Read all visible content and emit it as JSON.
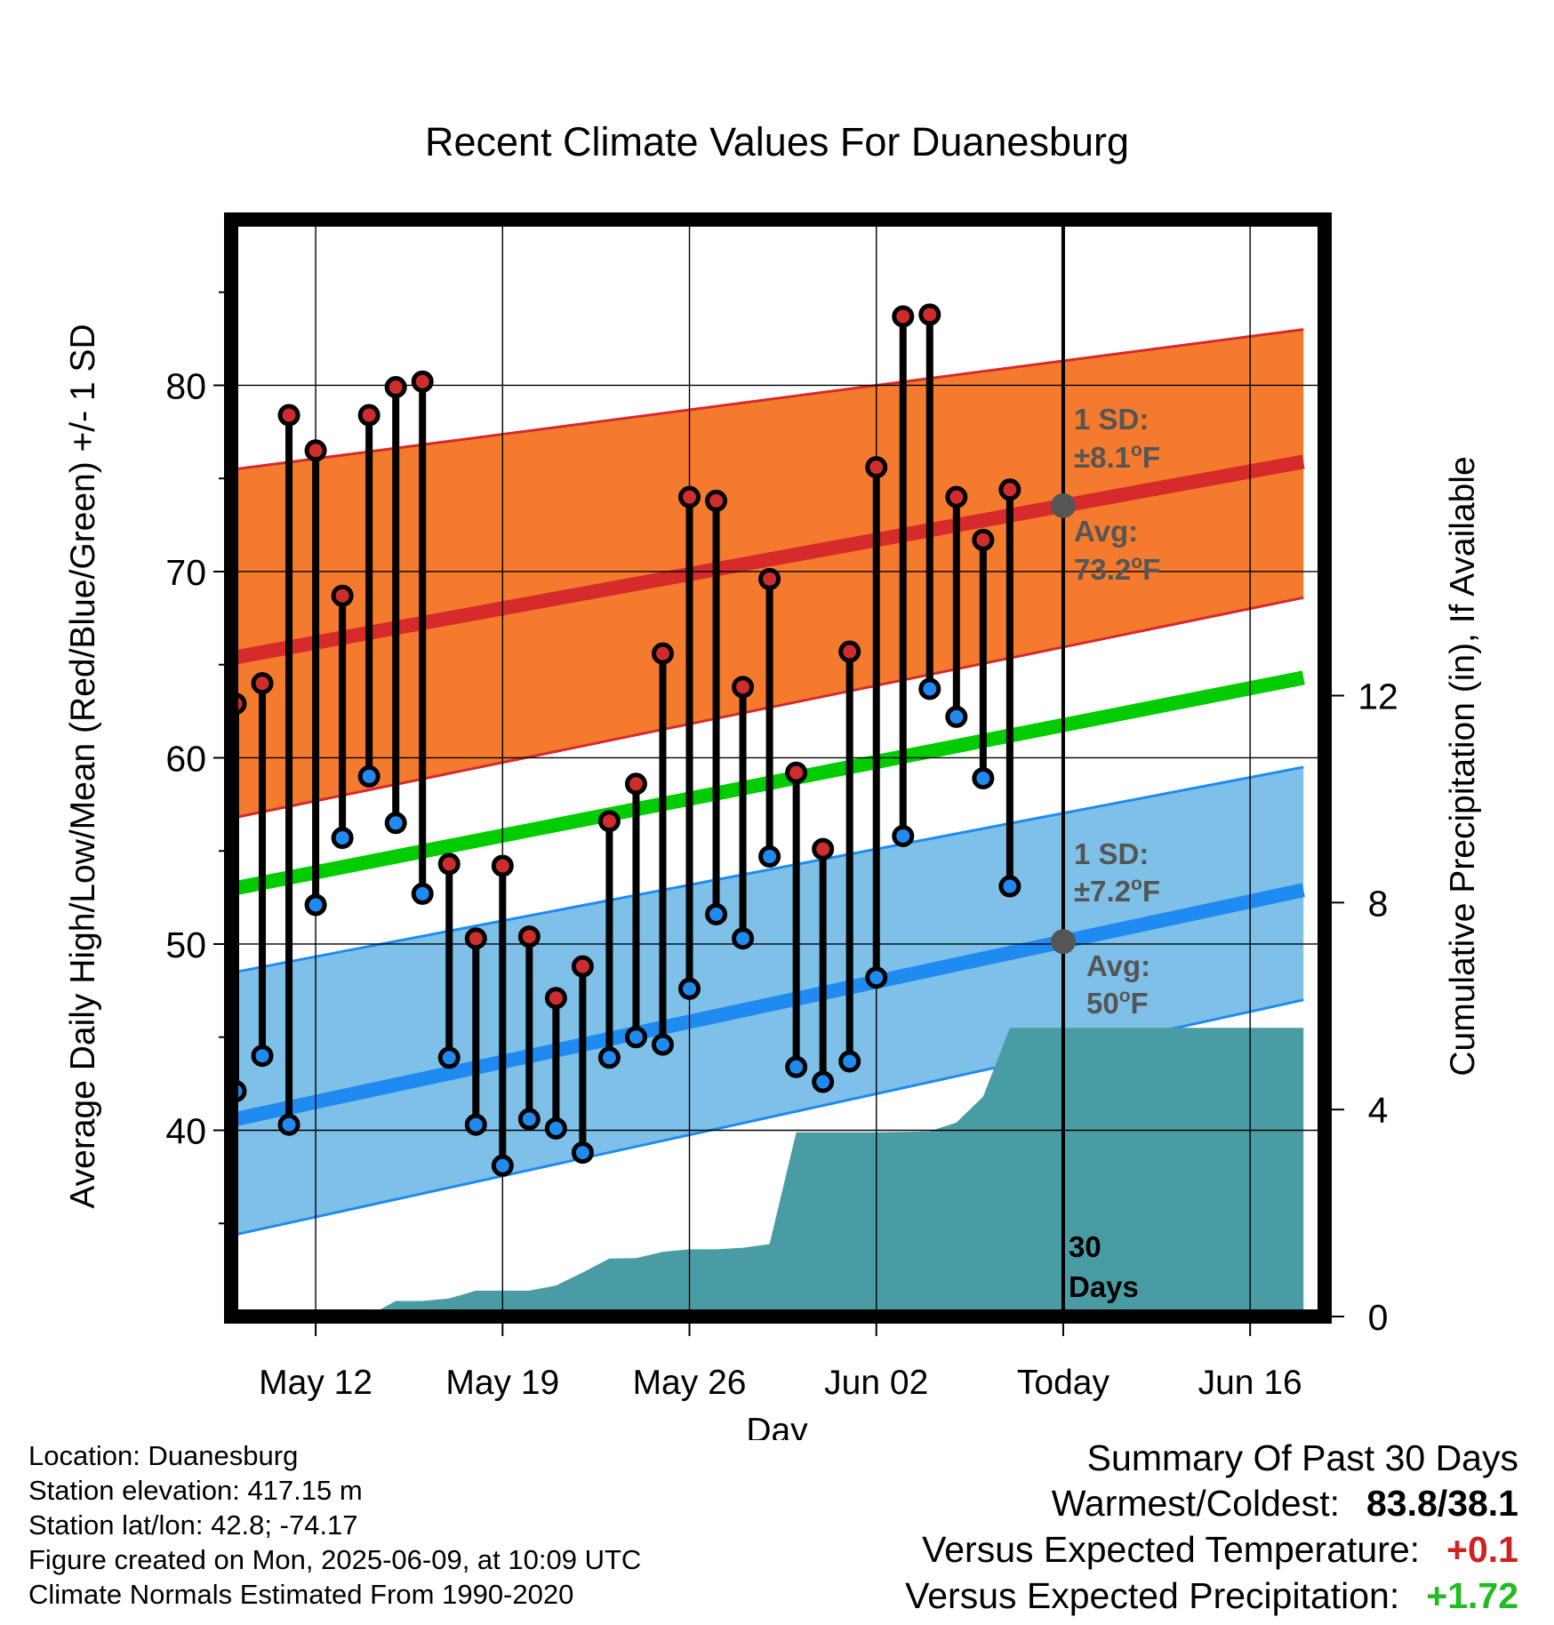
{
  "chart_data": {
    "type": "line",
    "title": "Recent Climate Values For Duanesburg",
    "xlabel": "Day",
    "ylabel": "Average Daily High/Low/Mean (Red/Blue/Green) +/- 1 SD",
    "y2label": "Cumulative Precipitation (in), If Available",
    "ylim": [
      30,
      88.9
    ],
    "y2lim": [
      0,
      21.2
    ],
    "x_tick_labels": [
      "May 12",
      "May 19",
      "May 26",
      "Jun 02",
      "Today",
      "Jun 16"
    ],
    "x_tick_days": [
      "2025-05-12",
      "2025-05-19",
      "2025-05-26",
      "2025-06-02",
      "2025-06-09",
      "2025-06-16"
    ],
    "y_ticks": [
      40,
      50,
      60,
      70,
      80
    ],
    "y2_ticks": [
      0,
      4,
      8,
      12
    ],
    "xlim": [
      "2025-05-08 20:00",
      "2025-06-18 19:00"
    ],
    "grid": true,
    "today": "2025-06-09",
    "colors": {
      "high_band": "#f47a2e",
      "high_line": "#d72a2a",
      "low_band": "#7fc0e8",
      "low_line": "#1f8bf0",
      "mean_line": "#00cc00",
      "precip": "#4a9ca4",
      "high_dot": "#cf2d2d",
      "low_dot": "#1f8bf0",
      "today_marker": "#555555",
      "annotation_text": "#555555",
      "positive_temp": "#cc2222",
      "positive_precip": "#22bb22"
    },
    "normals": {
      "start_date": "2025-05-09",
      "end_date": "2025-06-18",
      "high_avg": [
        65.4,
        75.9
      ],
      "high_upper": [
        75.5,
        83.0
      ],
      "high_lower": [
        56.8,
        68.6
      ],
      "mean": [
        53.0,
        64.3
      ],
      "low_avg": [
        40.6,
        52.9
      ],
      "low_upper": [
        48.5,
        59.5
      ],
      "low_lower": [
        34.4,
        47.0
      ]
    },
    "daily": {
      "dates": [
        "2025-05-09",
        "2025-05-10",
        "2025-05-11",
        "2025-05-12",
        "2025-05-13",
        "2025-05-14",
        "2025-05-15",
        "2025-05-16",
        "2025-05-17",
        "2025-05-18",
        "2025-05-19",
        "2025-05-20",
        "2025-05-21",
        "2025-05-22",
        "2025-05-23",
        "2025-05-24",
        "2025-05-25",
        "2025-05-26",
        "2025-05-27",
        "2025-05-28",
        "2025-05-29",
        "2025-05-30",
        "2025-05-31",
        "2025-06-01",
        "2025-06-02",
        "2025-06-03",
        "2025-06-04",
        "2025-06-05",
        "2025-06-06",
        "2025-06-07",
        "2025-06-08"
      ],
      "highs": [
        62.9,
        64.0,
        78.4,
        76.5,
        68.7,
        78.4,
        79.9,
        80.2,
        54.3,
        50.3,
        54.2,
        50.4,
        47.1,
        48.8,
        56.6,
        58.6,
        65.6,
        74.0,
        73.8,
        63.8,
        69.6,
        59.2,
        55.1,
        65.7,
        75.6,
        83.7,
        83.8,
        74.0,
        71.7,
        74.4,
        null
      ],
      "lows": [
        42.1,
        44.0,
        40.3,
        52.1,
        55.7,
        59.0,
        56.5,
        52.7,
        43.9,
        40.3,
        38.1,
        40.6,
        40.1,
        38.8,
        43.9,
        45.0,
        44.6,
        47.6,
        51.6,
        50.3,
        54.7,
        43.4,
        42.6,
        43.7,
        48.2,
        55.8,
        63.7,
        62.2,
        58.9,
        53.1,
        null
      ]
    },
    "precip": {
      "dates": [
        "2025-05-11",
        "2025-05-12",
        "2025-05-13",
        "2025-05-14",
        "2025-05-15",
        "2025-05-16",
        "2025-05-17",
        "2025-05-18",
        "2025-05-19",
        "2025-05-20",
        "2025-05-21",
        "2025-05-22",
        "2025-05-23",
        "2025-05-24",
        "2025-05-25",
        "2025-05-26",
        "2025-05-27",
        "2025-05-28",
        "2025-05-29",
        "2025-05-30",
        "2025-05-31",
        "2025-06-01",
        "2025-06-02",
        "2025-06-03",
        "2025-06-04",
        "2025-06-05",
        "2025-06-06",
        "2025-06-07",
        "2025-06-08",
        "2025-06-09",
        "2025-06-18"
      ],
      "values": [
        0,
        0,
        0,
        0.02,
        0.3,
        0.3,
        0.35,
        0.5,
        0.5,
        0.5,
        0.6,
        0.85,
        1.12,
        1.13,
        1.25,
        1.3,
        1.3,
        1.33,
        1.4,
        3.56,
        3.56,
        3.56,
        3.56,
        3.57,
        3.58,
        3.75,
        4.25,
        5.58,
        5.58,
        5.58,
        5.58
      ]
    },
    "annotations": {
      "high_sd": "1 SD:",
      "high_sd_val": "±8.1",
      "high_avg": "Avg:",
      "high_avg_val": "73.2",
      "low_sd": "1 SD:",
      "low_sd_val": "±7.2",
      "low_avg": "Avg:",
      "low_avg_val": "50",
      "deg": "o",
      "unit": "F",
      "days_num": "30",
      "days_label": "Days"
    }
  },
  "footer": {
    "location": "Location: Duanesburg",
    "elevation": "Station elevation: 417.15 m",
    "latlon": "Station lat/lon: 42.8; -74.17",
    "created": "Figure created on Mon, 2025-06-09, at 10:09 UTC",
    "normals": "Climate Normals Estimated From 1990-2020"
  },
  "summary": {
    "title": "Summary Of Past 30 Days",
    "warmest_label": "Warmest/Coldest:",
    "warmest_value": "83.8/38.1",
    "temp_label": "Versus Expected Temperature:",
    "temp_value": "+0.1",
    "precip_label": "Versus Expected Precipitation:",
    "precip_value": "+1.72"
  }
}
